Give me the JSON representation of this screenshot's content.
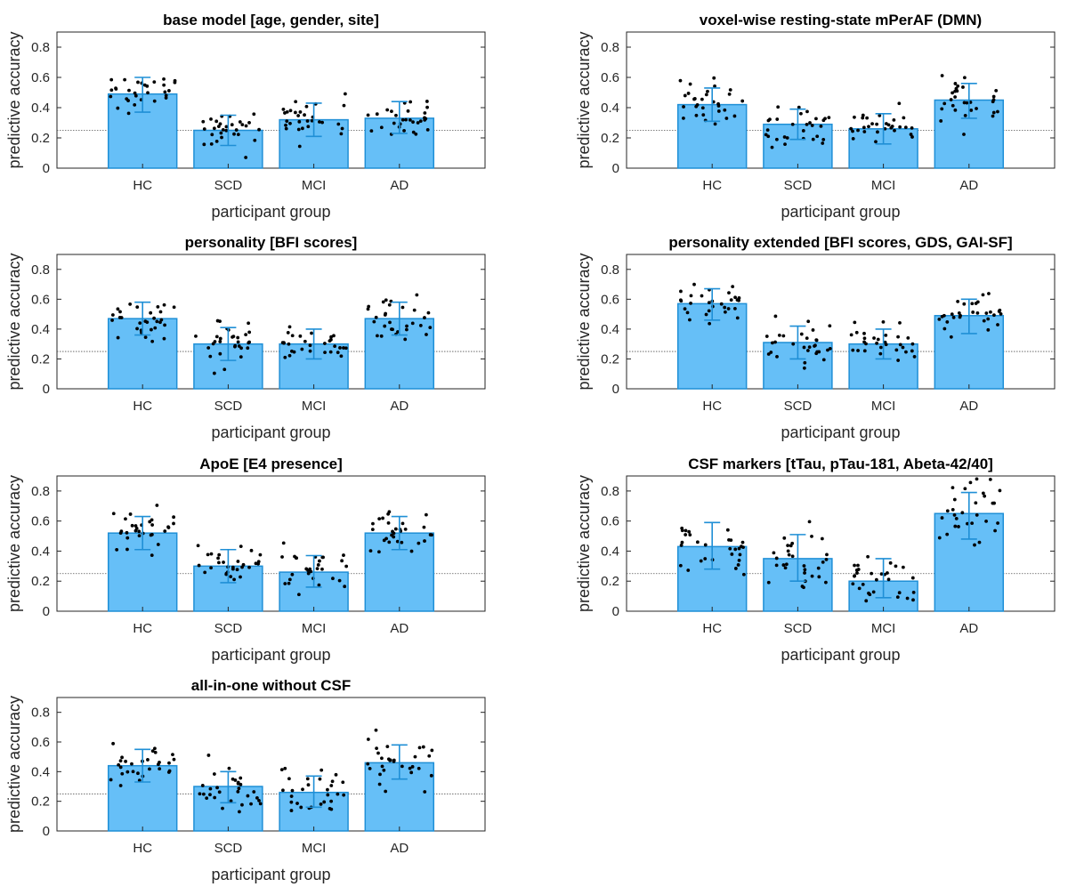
{
  "figure": {
    "reference_line": 0.25,
    "colors": {
      "bar_fill": "#66bff7",
      "bar_edge": "#1f8fd6",
      "errorbar": "#1f8fd6",
      "dots": "#000000",
      "axis": "#262626",
      "refline": "#555555"
    }
  },
  "chart_data": [
    {
      "type": "bar",
      "title": "base model [age, gender, site]",
      "xlabel": "participant group",
      "ylabel": "predictive accuracy",
      "categories": [
        "HC",
        "SCD",
        "MCI",
        "AD"
      ],
      "values": [
        0.49,
        0.25,
        0.32,
        0.33
      ],
      "error_low": [
        0.37,
        0.15,
        0.21,
        0.23
      ],
      "error_high": [
        0.6,
        0.35,
        0.43,
        0.44
      ],
      "ylim": [
        0,
        0.9
      ],
      "yticks": [
        "0",
        "0.2",
        "0.4",
        "0.6",
        "0.8"
      ],
      "grid": false
    },
    {
      "type": "bar",
      "title": "voxel-wise resting-state mPerAF (DMN)",
      "xlabel": "participant group",
      "ylabel": "predictive accuracy",
      "categories": [
        "HC",
        "SCD",
        "MCI",
        "AD"
      ],
      "values": [
        0.42,
        0.29,
        0.26,
        0.45
      ],
      "error_low": [
        0.31,
        0.19,
        0.16,
        0.33
      ],
      "error_high": [
        0.53,
        0.39,
        0.36,
        0.56
      ],
      "ylim": [
        0,
        0.9
      ],
      "yticks": [
        "0",
        "0.2",
        "0.4",
        "0.6",
        "0.8"
      ],
      "grid": false
    },
    {
      "type": "bar",
      "title": "personality [BFI scores]",
      "xlabel": "participant group",
      "ylabel": "predictive accuracy",
      "categories": [
        "HC",
        "SCD",
        "MCI",
        "AD"
      ],
      "values": [
        0.47,
        0.3,
        0.3,
        0.47
      ],
      "error_low": [
        0.36,
        0.19,
        0.2,
        0.36
      ],
      "error_high": [
        0.58,
        0.41,
        0.4,
        0.58
      ],
      "ylim": [
        0,
        0.9
      ],
      "yticks": [
        "0",
        "0.2",
        "0.4",
        "0.6",
        "0.8"
      ],
      "grid": false
    },
    {
      "type": "bar",
      "title": "personality extended [BFI scores, GDS, GAI-SF]",
      "xlabel": "participant group",
      "ylabel": "predictive accuracy",
      "categories": [
        "HC",
        "SCD",
        "MCI",
        "AD"
      ],
      "values": [
        0.57,
        0.31,
        0.3,
        0.49
      ],
      "error_low": [
        0.46,
        0.2,
        0.2,
        0.37
      ],
      "error_high": [
        0.67,
        0.42,
        0.4,
        0.6
      ],
      "ylim": [
        0,
        0.9
      ],
      "yticks": [
        "0",
        "0.2",
        "0.4",
        "0.6",
        "0.8"
      ],
      "grid": false
    },
    {
      "type": "bar",
      "title": "ApoE [E4 presence]",
      "xlabel": "participant group",
      "ylabel": "predictive accuracy",
      "categories": [
        "HC",
        "SCD",
        "MCI",
        "AD"
      ],
      "values": [
        0.52,
        0.3,
        0.26,
        0.52
      ],
      "error_low": [
        0.41,
        0.19,
        0.16,
        0.41
      ],
      "error_high": [
        0.63,
        0.41,
        0.37,
        0.63
      ],
      "ylim": [
        0,
        0.9
      ],
      "yticks": [
        "0",
        "0.2",
        "0.4",
        "0.6",
        "0.8"
      ],
      "grid": false
    },
    {
      "type": "bar",
      "title": "CSF markers [tTau, pTau-181, Abeta-42/40]",
      "xlabel": "participant group",
      "ylabel": "predictive accuracy",
      "categories": [
        "HC",
        "SCD",
        "MCI",
        "AD"
      ],
      "values": [
        0.43,
        0.35,
        0.2,
        0.65
      ],
      "error_low": [
        0.28,
        0.2,
        0.09,
        0.48
      ],
      "error_high": [
        0.59,
        0.51,
        0.35,
        0.79
      ],
      "ylim": [
        0,
        0.9
      ],
      "yticks": [
        "0",
        "0.2",
        "0.4",
        "0.6",
        "0.8"
      ],
      "grid": false
    },
    {
      "type": "bar",
      "title": "all-in-one without CSF",
      "xlabel": "participant group",
      "ylabel": "predictive accuracy",
      "categories": [
        "HC",
        "SCD",
        "MCI",
        "AD"
      ],
      "values": [
        0.44,
        0.3,
        0.26,
        0.46
      ],
      "error_low": [
        0.33,
        0.19,
        0.16,
        0.35
      ],
      "error_high": [
        0.55,
        0.4,
        0.37,
        0.58
      ],
      "ylim": [
        0,
        0.9
      ],
      "yticks": [
        "0",
        "0.2",
        "0.4",
        "0.6",
        "0.8"
      ],
      "grid": false
    }
  ]
}
